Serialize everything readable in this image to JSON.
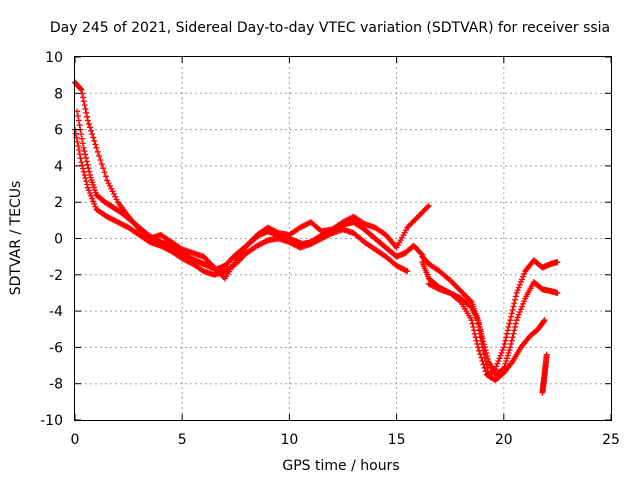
{
  "chart_data": {
    "type": "scatter",
    "title": "Day 245 of 2021, Sidereal Day-to-day VTEC variation (SDTVAR) for receiver ssia",
    "xlabel": "GPS time / hours",
    "ylabel": "SDTVAR / TECUs",
    "xlim": [
      0,
      25
    ],
    "ylim": [
      -10,
      10
    ],
    "xticks": [
      0,
      5,
      10,
      15,
      20,
      25
    ],
    "yticks": [
      -10,
      -8,
      -6,
      -4,
      -2,
      0,
      2,
      4,
      6,
      8,
      10
    ],
    "grid": true,
    "marker": "+",
    "color": "#ff0000",
    "series": [
      {
        "name": "ssia",
        "tracks": [
          {
            "x": [
              0.0,
              0.3,
              0.6,
              1.0,
              1.5,
              2.0,
              2.5,
              3.0,
              3.5,
              4.0,
              4.5,
              5.0,
              5.5,
              6.0,
              6.5,
              7.0,
              7.5,
              8.0,
              8.5,
              9.0,
              9.5,
              10.0,
              10.5,
              11.0,
              11.5,
              12.0,
              12.5,
              13.0,
              13.5,
              14.0,
              14.5,
              15.0,
              15.5,
              16.0,
              16.5
            ],
            "y": [
              8.6,
              8.2,
              6.5,
              5.0,
              3.2,
              2.0,
              1.2,
              0.5,
              0.0,
              0.2,
              -0.2,
              -0.6,
              -0.8,
              -1.0,
              -1.6,
              -2.2,
              -1.2,
              -0.4,
              0.2,
              0.6,
              0.3,
              0.2,
              0.6,
              0.9,
              0.4,
              0.5,
              0.9,
              1.2,
              0.8,
              0.6,
              0.2,
              -0.5,
              0.6,
              1.2,
              1.8
            ]
          },
          {
            "x": [
              0.0,
              0.3,
              0.6,
              1.0,
              1.5,
              2.0,
              2.5,
              3.0,
              3.5,
              4.0,
              4.5,
              5.0,
              5.5,
              6.0,
              6.5,
              7.0,
              7.5,
              8.0,
              8.5,
              9.0,
              9.5,
              10.0,
              10.5,
              11.0,
              11.5,
              12.0,
              12.5,
              13.0,
              13.5,
              14.0,
              14.5,
              15.0,
              15.5
            ],
            "y": [
              6.0,
              4.2,
              2.8,
              1.6,
              1.2,
              0.9,
              0.6,
              0.2,
              -0.2,
              -0.4,
              -0.7,
              -1.1,
              -1.4,
              -1.8,
              -2.0,
              -1.8,
              -1.4,
              -0.8,
              -0.4,
              -0.1,
              0.0,
              -0.2,
              -0.5,
              -0.3,
              0.0,
              0.3,
              0.5,
              0.3,
              -0.2,
              -0.6,
              -1.0,
              -1.5,
              -1.8
            ]
          },
          {
            "x": [
              0.1,
              0.4,
              0.7,
              1.0,
              1.4,
              1.8,
              2.2,
              2.6,
              3.0,
              3.4,
              3.8,
              4.2,
              4.6,
              5.0,
              5.4,
              5.8,
              6.2,
              6.6,
              7.0,
              7.4,
              7.8,
              8.2,
              8.6,
              9.0,
              9.4,
              9.8,
              10.2,
              10.6,
              11.0,
              11.4,
              11.8,
              12.2,
              12.6,
              13.0,
              13.4,
              13.8,
              14.2,
              14.6,
              15.0,
              15.4,
              15.8,
              16.2
            ],
            "y": [
              7.0,
              5.0,
              3.5,
              2.4,
              2.0,
              1.7,
              1.4,
              1.0,
              0.6,
              0.2,
              -0.1,
              -0.3,
              -0.5,
              -0.8,
              -1.1,
              -1.3,
              -1.5,
              -1.7,
              -1.5,
              -1.0,
              -0.6,
              -0.2,
              0.2,
              0.4,
              0.2,
              0.0,
              -0.1,
              -0.3,
              -0.2,
              0.1,
              0.3,
              0.6,
              0.8,
              0.9,
              0.6,
              0.2,
              -0.2,
              -0.6,
              -1.0,
              -0.8,
              -0.4,
              -0.9
            ]
          },
          {
            "x": [
              16.2,
              16.5,
              17.0,
              17.5,
              18.0,
              18.5,
              18.8,
              19.0,
              19.3,
              19.6,
              20.0,
              20.3,
              20.6,
              21.0,
              21.4,
              21.8,
              22.2,
              22.5
            ],
            "y": [
              -1.0,
              -1.4,
              -1.8,
              -2.3,
              -2.9,
              -3.5,
              -4.5,
              -6.0,
              -7.5,
              -7.2,
              -6.0,
              -4.5,
              -3.0,
              -1.8,
              -1.2,
              -1.6,
              -1.4,
              -1.3
            ]
          },
          {
            "x": [
              16.2,
              16.5,
              17.0,
              17.5,
              18.0,
              18.5,
              18.8,
              19.0,
              19.3,
              19.6,
              20.0,
              20.3,
              20.6,
              21.0,
              21.4,
              21.8,
              22.2,
              22.5
            ],
            "y": [
              -1.3,
              -2.2,
              -2.7,
              -3.0,
              -3.3,
              -3.8,
              -4.5,
              -5.5,
              -6.8,
              -7.5,
              -7.2,
              -6.0,
              -4.5,
              -3.3,
              -2.4,
              -2.8,
              -2.9,
              -3.0
            ]
          },
          {
            "x": [
              16.5,
              17.0,
              17.5,
              18.0,
              18.5,
              18.8,
              19.2,
              19.6,
              20.0,
              20.4,
              20.8,
              21.2,
              21.6,
              21.9
            ],
            "y": [
              -2.5,
              -2.8,
              -3.0,
              -3.5,
              -4.5,
              -6.0,
              -7.5,
              -7.8,
              -7.4,
              -6.8,
              -6.0,
              -5.4,
              -5.0,
              -4.5
            ]
          },
          {
            "x": [
              21.8,
              21.85,
              21.9,
              21.95,
              22.0
            ],
            "y": [
              -8.5,
              -8.0,
              -7.5,
              -7.0,
              -6.4
            ]
          }
        ]
      }
    ]
  }
}
